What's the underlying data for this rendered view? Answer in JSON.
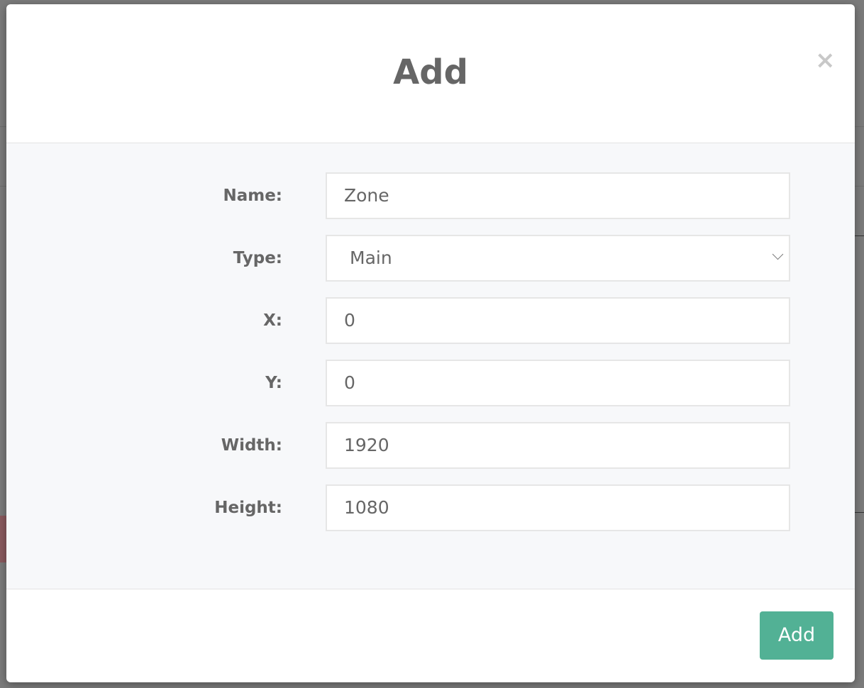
{
  "modal": {
    "title": "Add",
    "close_icon": "close-icon",
    "fields": [
      {
        "label": "Name:",
        "value": "Zone",
        "kind": "text"
      },
      {
        "label": "Type:",
        "value": "Main",
        "kind": "select"
      },
      {
        "label": "X:",
        "value": "0",
        "kind": "text"
      },
      {
        "label": "Y:",
        "value": "0",
        "kind": "text"
      },
      {
        "label": "Width:",
        "value": "1920",
        "kind": "text"
      },
      {
        "label": "Height:",
        "value": "1080",
        "kind": "text"
      }
    ],
    "submit_label": "Add",
    "colors": {
      "accent": "#52b195",
      "overlay": "#7b7b7b",
      "body_bg": "#f7f8fa"
    }
  }
}
